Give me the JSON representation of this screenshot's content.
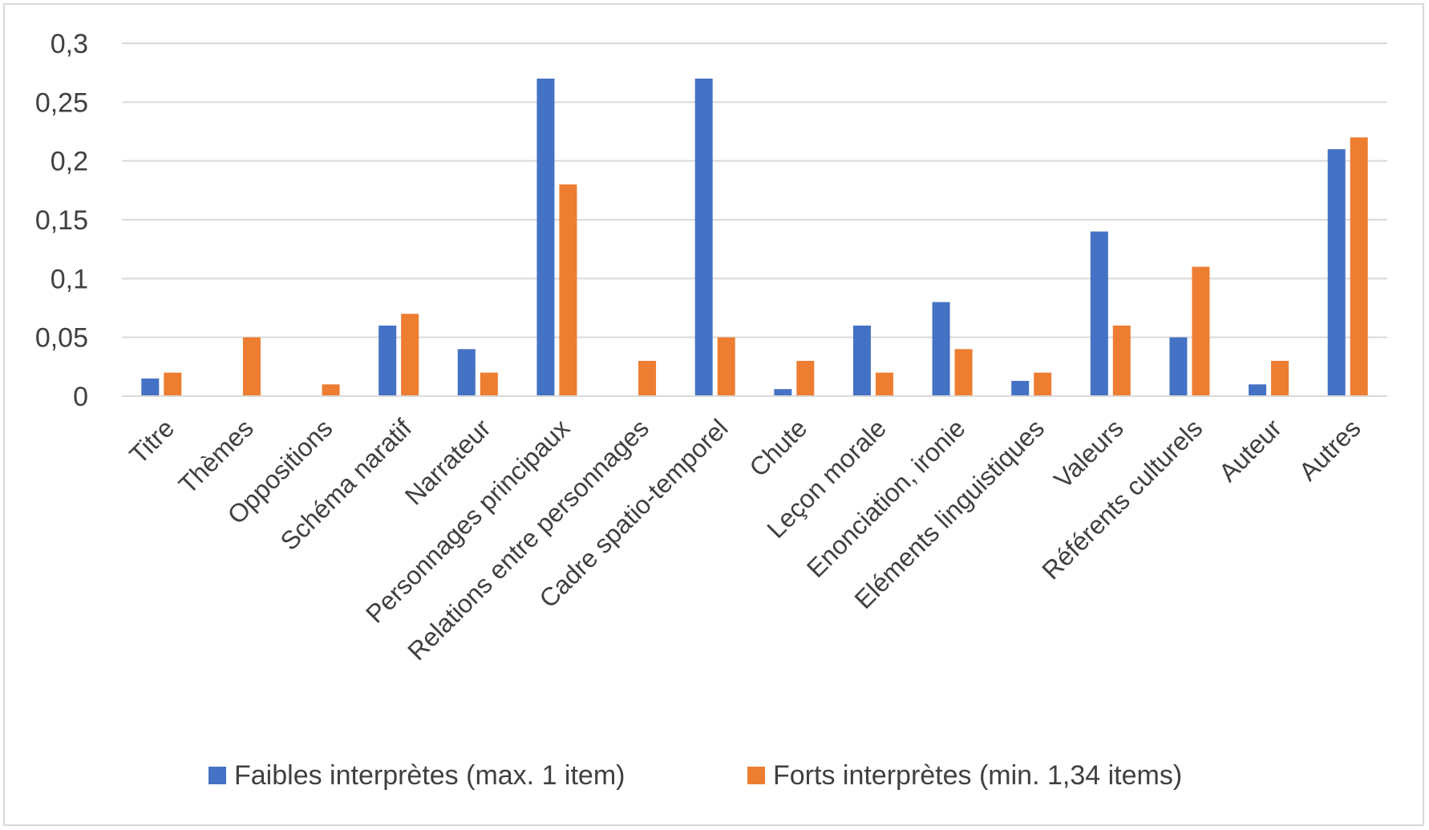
{
  "chart_data": {
    "type": "bar",
    "categories": [
      "Titre",
      "Thèmes",
      "Oppositions",
      "Schéma naratif",
      "Narrateur",
      "Personnages principaux",
      "Relations entre personnages",
      "Cadre spatio-temporel",
      "Chute",
      "Leçon morale",
      "Enonciation, ironie",
      "Eléments linguistiques",
      "Valeurs",
      "Référents culturels",
      "Auteur",
      "Autres"
    ],
    "series": [
      {
        "name": "Faibles interprètes (max. 1 item)",
        "color": "#4472c4",
        "values": [
          0.015,
          0,
          0,
          0.06,
          0.04,
          0.27,
          0,
          0.27,
          0.006,
          0.06,
          0.08,
          0.013,
          0.14,
          0.05,
          0.01,
          0.21
        ]
      },
      {
        "name": "Forts interprètes (min. 1,34 items)",
        "color": "#ed7d31",
        "values": [
          0.02,
          0.05,
          0.01,
          0.07,
          0.02,
          0.18,
          0.03,
          0.05,
          0.03,
          0.02,
          0.04,
          0.02,
          0.06,
          0.11,
          0.03,
          0.22
        ]
      }
    ],
    "yticks": [
      "0",
      "0,05",
      "0,1",
      "0,15",
      "0,2",
      "0,25",
      "0,3"
    ],
    "ylim": [
      0,
      0.3
    ],
    "grid": true,
    "legend_position": "bottom"
  }
}
